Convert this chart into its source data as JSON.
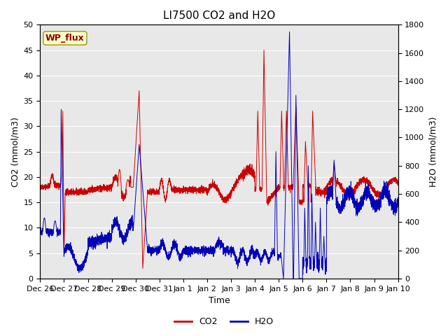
{
  "title": "LI7500 CO2 and H2O",
  "xlabel": "Time",
  "ylabel_left": "CO2 (mmol/m3)",
  "ylabel_right": "H2O (mmol/m3)",
  "ylim_left": [
    0,
    50
  ],
  "ylim_right": [
    0,
    1800
  ],
  "yticks_left": [
    0,
    5,
    10,
    15,
    20,
    25,
    30,
    35,
    40,
    45,
    50
  ],
  "yticks_right": [
    0,
    200,
    400,
    600,
    800,
    1000,
    1200,
    1400,
    1600,
    1800
  ],
  "background_color": "#e8e8e8",
  "co2_color": "#cc0000",
  "h2o_color": "#0000bb",
  "site_label": "WP_flux",
  "site_label_bg": "#ffffcc",
  "site_label_border": "#999900",
  "legend_co2": "CO2",
  "legend_h2o": "H2O",
  "x_tick_labels": [
    "Dec 26",
    "Dec 27",
    "Dec 28",
    "Dec 29",
    "Dec 30",
    "Dec 31",
    "Jan 1",
    "Jan 2",
    "Jan 3",
    "Jan 4",
    "Jan 5",
    "Jan 6",
    "Jan 7",
    "Jan 8",
    "Jan 9",
    "Jan 10"
  ],
  "title_fontsize": 11,
  "axis_label_fontsize": 9,
  "tick_fontsize": 8
}
